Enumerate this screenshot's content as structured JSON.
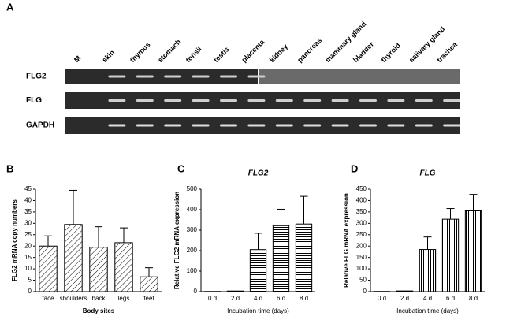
{
  "gel": {
    "panel": "A",
    "lanes": [
      "M",
      "skin",
      "thymus",
      "stomach",
      "tonsil",
      "testis",
      "placenta",
      "kidney",
      "pancreas",
      "mammary gland",
      "bladder",
      "thyroid",
      "salivary gland",
      "trachea"
    ],
    "rows": [
      "FLG2",
      "FLG",
      "GAPDH"
    ]
  },
  "chart_data": [
    {
      "type": "bar",
      "panel": "B",
      "pattern": "diagonal",
      "ylabel": "FLG2 mRNA copy numbers",
      "xlabel": "Body sites",
      "categories": [
        "face",
        "shoulders",
        "back",
        "legs",
        "feet"
      ],
      "values": [
        20,
        29.5,
        19.5,
        21.5,
        6.5
      ],
      "errors": [
        4.5,
        15,
        9,
        6.5,
        4
      ],
      "ylim": [
        0,
        45
      ],
      "yticks": [
        0,
        5,
        10,
        15,
        20,
        25,
        30,
        35,
        40,
        45
      ]
    },
    {
      "type": "bar",
      "panel": "C",
      "pattern": "horizontal",
      "title": "FLG2",
      "ylabel": "Relative FLG2 mRNA expression",
      "xlabel": "Incubation time (days)",
      "categories": [
        "0 d",
        "2 d",
        "4 d",
        "6 d",
        "8 d"
      ],
      "values": [
        1,
        3,
        205,
        322,
        330
      ],
      "errors": [
        0,
        0,
        80,
        80,
        135
      ],
      "ylim": [
        0,
        500
      ],
      "yticks": [
        0,
        100,
        200,
        300,
        400,
        500
      ]
    },
    {
      "type": "bar",
      "panel": "D",
      "pattern": "vertical",
      "title": "FLG",
      "ylabel": "Relative FLG mRNA expression",
      "xlabel": "Incubation time (days)",
      "categories": [
        "0 d",
        "2 d",
        "4 d",
        "6 d",
        "8 d"
      ],
      "values": [
        1,
        3,
        185,
        318,
        355
      ],
      "errors": [
        0,
        0,
        55,
        47,
        72
      ],
      "ylim": [
        0,
        450
      ],
      "yticks": [
        0,
        50,
        100,
        150,
        200,
        250,
        300,
        350,
        400,
        450
      ]
    }
  ]
}
